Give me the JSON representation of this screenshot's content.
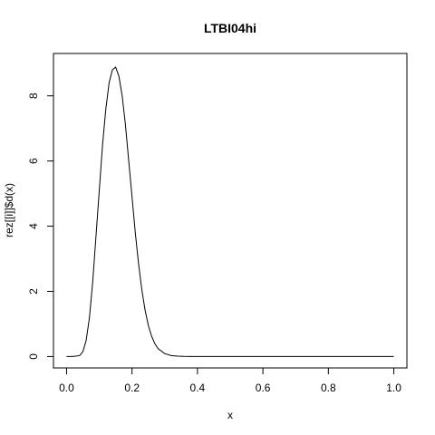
{
  "chart_data": {
    "type": "line",
    "title": "LTBI04hi",
    "xlabel": "x",
    "ylabel": "rez[[i]]$d(x)",
    "xlim": [
      -0.04,
      1.04
    ],
    "ylim": [
      -0.35,
      9.3
    ],
    "xticks": [
      0.0,
      0.2,
      0.4,
      0.6,
      0.8,
      1.0
    ],
    "xtick_labels": [
      "0.0",
      "0.2",
      "0.4",
      "0.6",
      "0.8",
      "1.0"
    ],
    "yticks": [
      0,
      2,
      4,
      6,
      8
    ],
    "ytick_labels": [
      "0",
      "2",
      "4",
      "6",
      "8"
    ],
    "grid": false,
    "legend": "none",
    "line_color": "#000000",
    "series": [
      {
        "x": [
          0.0,
          0.02,
          0.04,
          0.05,
          0.06,
          0.07,
          0.08,
          0.09,
          0.1,
          0.11,
          0.12,
          0.13,
          0.14,
          0.15,
          0.16,
          0.17,
          0.18,
          0.19,
          0.2,
          0.21,
          0.22,
          0.23,
          0.24,
          0.25,
          0.26,
          0.27,
          0.28,
          0.3,
          0.32,
          0.34,
          0.36,
          0.38,
          0.4,
          0.45,
          0.5,
          0.6,
          0.7,
          0.8,
          0.9,
          1.0
        ],
        "y": [
          0.0,
          0.0,
          0.03,
          0.15,
          0.5,
          1.2,
          2.3,
          3.7,
          5.1,
          6.5,
          7.6,
          8.4,
          8.8,
          8.88,
          8.6,
          8.0,
          7.1,
          6.0,
          4.9,
          3.8,
          2.85,
          2.05,
          1.42,
          0.95,
          0.62,
          0.39,
          0.24,
          0.09,
          0.03,
          0.01,
          0.003,
          0.001,
          0.0,
          0.0,
          0.0,
          0.0,
          0.0,
          0.0,
          0.0,
          0.0
        ]
      }
    ]
  }
}
